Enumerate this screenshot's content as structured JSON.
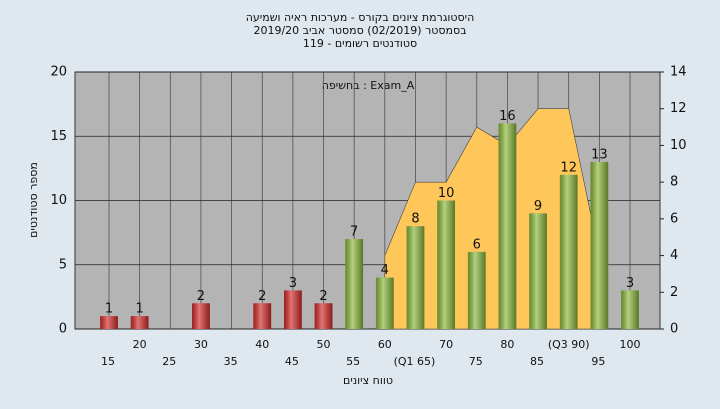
{
  "chart_data": {
    "type": "bar",
    "title": "היסטוגרמת ציונים בקורס - מערכות ראיה ושמיעה",
    "subtitle": "בסמסטר  (02/2019)  סמסטר אביב 2019/20",
    "subtitle2": "סטודנטים רשומים - 119",
    "annotation": "בחשיפה : Exam_A",
    "x_label": "טווח ציונים",
    "y_label": "מספר סטודנטים",
    "categories": [
      "15",
      "20",
      "25",
      "30",
      "35",
      "40",
      "45",
      "50",
      "55",
      "60",
      "(Q1 65)",
      "70",
      "75",
      "80",
      "85",
      "(Q3 90)",
      "95",
      "100"
    ],
    "values": [
      1,
      1,
      null,
      2,
      null,
      2,
      3,
      2,
      7,
      4,
      8,
      10,
      6,
      16,
      9,
      12,
      13,
      3
    ],
    "colors": [
      "#d42a2a",
      "#d42a2a",
      "#d42a2a",
      "#d42a2a",
      "#d42a2a",
      "#d42a2a",
      "#d42a2a",
      "#d42a2a",
      "#8ab83a",
      "#8ab83a",
      "#8ab83a",
      "#8ab83a",
      "#8ab83a",
      "#8ab83a",
      "#8ab83a",
      "#8ab83a",
      "#8ab83a",
      "#8ab83a"
    ],
    "area": {
      "axis": "y2",
      "color": "#ffc65a",
      "values": [
        null,
        null,
        null,
        null,
        null,
        null,
        null,
        null,
        null,
        4,
        8,
        8,
        11,
        10,
        12,
        12,
        4,
        null
      ]
    },
    "ylim": [
      0,
      20
    ],
    "yticks": [
      0,
      5,
      10,
      15,
      20
    ],
    "y2lim": [
      0,
      14
    ],
    "y2ticks": [
      0,
      2,
      4,
      6,
      8,
      10,
      12,
      14
    ],
    "grid": true
  }
}
